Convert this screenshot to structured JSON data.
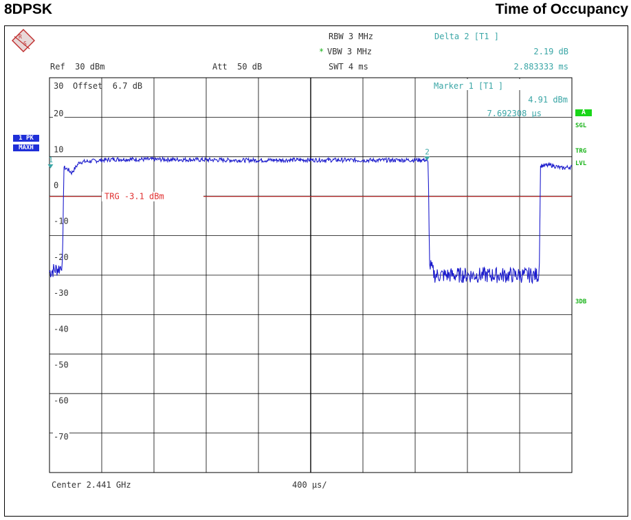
{
  "header": {
    "left_title": "8DPSK",
    "right_title": "Time of Occupancy"
  },
  "settings": {
    "rbw": "RBW 3 MHz",
    "vbw_star": "*",
    "vbw": "VBW 3 MHz",
    "swt": "SWT 4 ms",
    "ref": "Ref  30 dBm",
    "att": "Att  50 dB",
    "offset": "Offset  6.7 dB"
  },
  "delta_marker": {
    "title": "Delta 2 [T1 ]",
    "level": "2.19 dB",
    "time": "2.883333 ms"
  },
  "marker1": {
    "title": "Marker 1 [T1 ]",
    "level": "4.91 dBm",
    "time": "7.692308 µs"
  },
  "side_labels": {
    "trace_mode_1": "1 PK",
    "trace_mode_2": "MAXH",
    "a_badge": "A",
    "sgl": "SGL",
    "trg": "TRG",
    "lvl": "LVL",
    "db3": "3DB"
  },
  "footer": {
    "center": "Center 2.441 GHz",
    "span": "400 µs/"
  },
  "colors": {
    "trace": "#1a1acc",
    "trigger": "#e03030",
    "grid": "#000000",
    "marker": "#3aa6a6",
    "status_green": "#19b319"
  },
  "chart_data": {
    "type": "line",
    "x_unit": "ms",
    "xlim": [
      0,
      4
    ],
    "ylim": [
      -80,
      30
    ],
    "ytick_labels": [
      "30",
      "20",
      "10",
      "0",
      "-10",
      "-20",
      "-30",
      "-40",
      "-50",
      "-60",
      "-70"
    ],
    "grid": true,
    "trigger_level": {
      "value": -3.1,
      "label": "TRG -3.1 dBm"
    },
    "markers": [
      {
        "name": "1",
        "x": 0.0077,
        "y": 4.91
      },
      {
        "name": "2",
        "x": 2.891,
        "y": 7.1
      }
    ],
    "series": [
      {
        "points": [
          [
            0,
            -24
          ],
          [
            0.08,
            -23
          ],
          [
            0.1,
            -21
          ],
          [
            0.11,
            5
          ],
          [
            0.14,
            4.5
          ],
          [
            0.17,
            3.5
          ],
          [
            0.23,
            6.5
          ],
          [
            0.5,
            7.3
          ],
          [
            1.0,
            7.2
          ],
          [
            1.5,
            7.0
          ],
          [
            2.0,
            7.1
          ],
          [
            2.5,
            7.0
          ],
          [
            2.88,
            7.1
          ],
          [
            2.9,
            6.5
          ],
          [
            2.91,
            -22
          ],
          [
            2.95,
            -25
          ],
          [
            3.3,
            -25
          ],
          [
            3.75,
            -25
          ],
          [
            3.76,
            5.5
          ],
          [
            3.85,
            5.6
          ],
          [
            3.92,
            4.8
          ],
          [
            4.0,
            5.2
          ]
        ]
      }
    ]
  }
}
